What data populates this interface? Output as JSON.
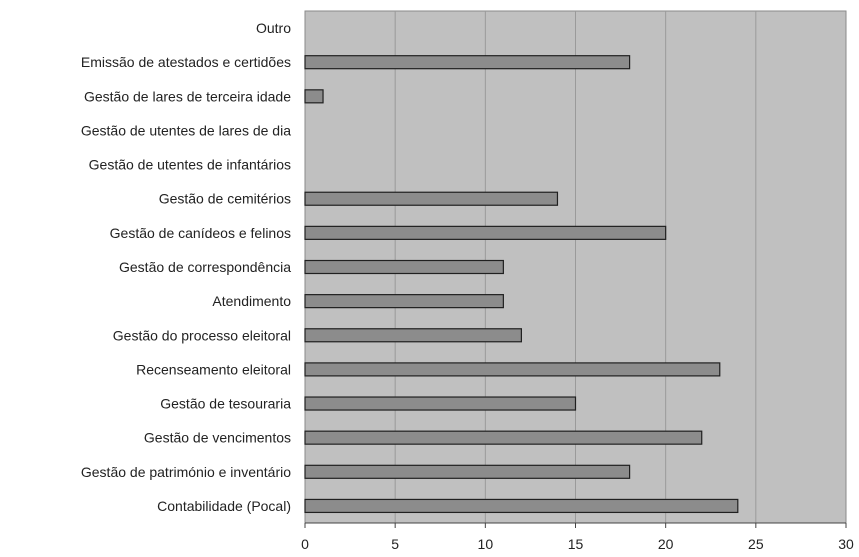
{
  "chart_data": {
    "type": "bar",
    "orientation": "horizontal",
    "categories": [
      "Outro",
      "Emissão de atestados e certidões",
      "Gestão de lares de terceira idade",
      "Gestão de utentes de lares de dia",
      "Gestão de utentes de infantários",
      "Gestão de cemitérios",
      "Gestão de canídeos e felinos",
      "Gestão de correspondência",
      "Atendimento",
      "Gestão do processo eleitoral",
      "Recenseamento eleitoral",
      "Gestão de tesouraria",
      "Gestão de vencimentos",
      "Gestão de património e inventário",
      "Contabilidade (Pocal)"
    ],
    "values": [
      0,
      18,
      1,
      0,
      0,
      14,
      20,
      11,
      11,
      12,
      23,
      15,
      22,
      18,
      24
    ],
    "xlim": [
      0,
      30
    ],
    "xticks": [
      "0",
      "5",
      "10",
      "15",
      "20",
      "25",
      "30"
    ],
    "grid": "vertical",
    "legend": "none",
    "title": "",
    "xlabel": "",
    "ylabel": "",
    "colors": {
      "plot_background": "#c0c0c0",
      "bar_fill": "#8c8c8c",
      "bar_stroke": "#202020",
      "grid": "#9a9a9a"
    }
  }
}
